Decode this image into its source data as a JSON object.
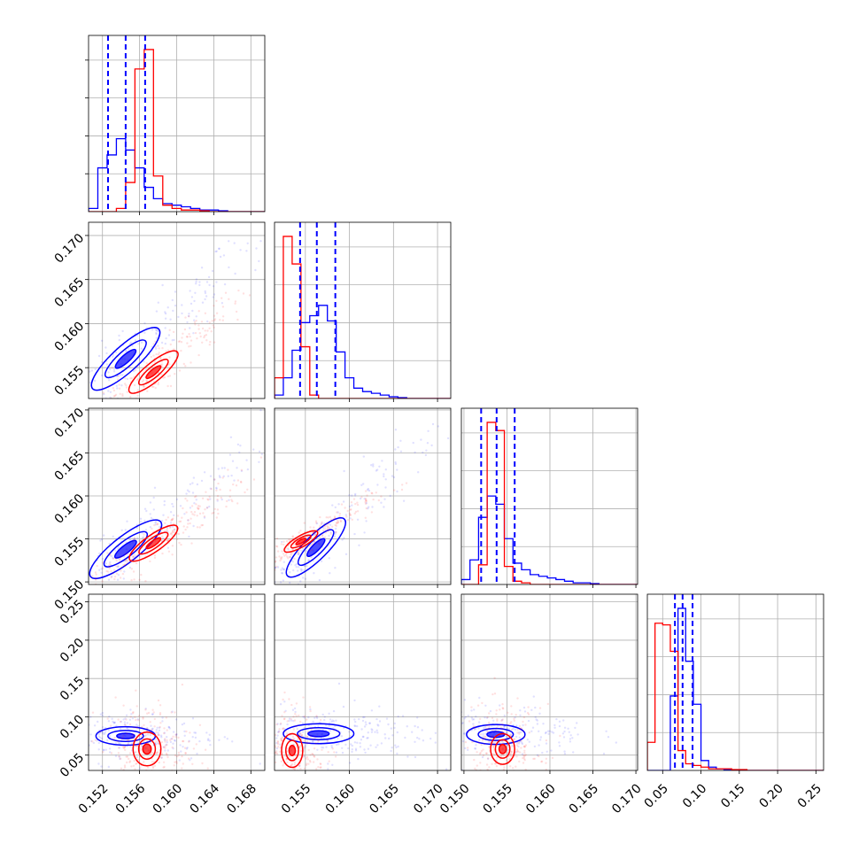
{
  "chart_data": {
    "type": "corner",
    "colors": {
      "a": "#0000ff",
      "b": "#ff0000"
    },
    "dims": [
      {
        "ticks": [
          "0.152",
          "0.156",
          "0.160",
          "0.164",
          "0.168"
        ],
        "tick_values": [
          0.152,
          0.156,
          0.16,
          0.164,
          0.168
        ],
        "range": [
          0.1505,
          0.1695
        ]
      },
      {
        "ticks": [
          "0.155",
          "0.160",
          "0.165",
          "0.170"
        ],
        "tick_values": [
          0.155,
          0.16,
          0.165,
          0.17
        ],
        "range": [
          0.1515,
          0.1715
        ]
      },
      {
        "ticks": [
          "0.150",
          "0.155",
          "0.160",
          "0.165",
          "0.170"
        ],
        "tick_values": [
          0.15,
          0.155,
          0.16,
          0.165,
          0.17
        ],
        "range": [
          0.1497,
          0.1702
        ]
      },
      {
        "ticks": [
          "0.05",
          "0.10",
          "0.15",
          "0.20",
          "0.25"
        ],
        "tick_values": [
          0.05,
          0.1,
          0.15,
          0.2,
          0.25
        ],
        "range": [
          0.03,
          0.26
        ]
      }
    ],
    "row_ticks": [
      null,
      {
        "ticks": [
          "0.155",
          "0.160",
          "0.165",
          "0.170"
        ],
        "tick_values": [
          0.155,
          0.16,
          0.165,
          0.17
        ],
        "range": [
          0.1515,
          0.1715
        ]
      },
      {
        "ticks": [
          "0.150",
          "0.155",
          "0.160",
          "0.165",
          "0.170"
        ],
        "tick_values": [
          0.15,
          0.155,
          0.16,
          0.165,
          0.17
        ],
        "range": [
          0.1497,
          0.1702
        ]
      },
      {
        "ticks": [
          "0.05",
          "0.10",
          "0.15",
          "0.20",
          "0.25"
        ],
        "tick_values": [
          0.05,
          0.1,
          0.15,
          0.2,
          0.25
        ],
        "range": [
          0.03,
          0.26
        ]
      }
    ],
    "hist": [
      {
        "edges": [
          0.1505,
          0.1515,
          0.1525,
          0.1535,
          0.1545,
          0.1555,
          0.1565,
          0.1575,
          0.1585,
          0.1595,
          0.1605,
          0.1615,
          0.1625,
          0.1635,
          0.1645,
          0.1655,
          0.1665,
          0.1675,
          0.1695
        ],
        "a": [
          0.02,
          0.27,
          0.35,
          0.45,
          0.38,
          0.27,
          0.15,
          0.08,
          0.05,
          0.04,
          0.03,
          0.02,
          0.01,
          0.01,
          0.005,
          0,
          0,
          0
        ],
        "b": [
          0,
          0,
          0,
          0.02,
          0.18,
          0.88,
          1.0,
          0.22,
          0.04,
          0.02,
          0.01,
          0.01,
          0.005,
          0,
          0,
          0,
          0,
          0
        ],
        "quantiles": [
          0.1526,
          0.1545,
          0.1566
        ]
      },
      {
        "edges": [
          0.1515,
          0.1525,
          0.1535,
          0.1545,
          0.1555,
          0.1565,
          0.1575,
          0.1585,
          0.1595,
          0.1605,
          0.1615,
          0.1625,
          0.1635,
          0.1645,
          0.1655,
          0.1665,
          0.1675,
          0.1695,
          0.1715
        ],
        "a": [
          0.02,
          0.12,
          0.28,
          0.44,
          0.48,
          0.54,
          0.45,
          0.27,
          0.12,
          0.06,
          0.04,
          0.03,
          0.02,
          0.01,
          0.005,
          0,
          0,
          0
        ],
        "b": [
          0.12,
          0.94,
          0.78,
          0.3,
          0.02,
          0,
          0,
          0,
          0,
          0,
          0,
          0,
          0,
          0,
          0,
          0,
          0,
          0
        ],
        "quantiles": [
          0.1544,
          0.1563,
          0.1584
        ]
      },
      {
        "edges": [
          0.1497,
          0.1507,
          0.1517,
          0.1527,
          0.1537,
          0.1547,
          0.1557,
          0.1567,
          0.1577,
          0.1587,
          0.1597,
          0.1607,
          0.1617,
          0.1627,
          0.1637,
          0.1647,
          0.1657,
          0.168,
          0.1702
        ],
        "a": [
          0.03,
          0.15,
          0.41,
          0.54,
          0.49,
          0.28,
          0.13,
          0.09,
          0.06,
          0.05,
          0.04,
          0.03,
          0.02,
          0.01,
          0.01,
          0.005,
          0,
          0
        ],
        "b": [
          0,
          0,
          0.12,
          0.99,
          0.94,
          0.11,
          0.02,
          0.01,
          0,
          0,
          0,
          0,
          0,
          0,
          0,
          0,
          0,
          0
        ],
        "quantiles": [
          0.152,
          0.1538,
          0.1559
        ]
      },
      {
        "edges": [
          0.03,
          0.04,
          0.05,
          0.06,
          0.07,
          0.08,
          0.09,
          0.1,
          0.11,
          0.12,
          0.13,
          0.14,
          0.15,
          0.16,
          0.17,
          0.18,
          0.2,
          0.22,
          0.26
        ],
        "a": [
          0,
          0,
          0,
          0.45,
          0.98,
          0.66,
          0.4,
          0.06,
          0.02,
          0.01,
          0.005,
          0,
          0,
          0,
          0,
          0,
          0,
          0
        ],
        "b": [
          0.17,
          0.89,
          0.88,
          0.72,
          0.12,
          0.04,
          0.03,
          0.02,
          0.01,
          0.01,
          0.01,
          0.005,
          0.005,
          0,
          0,
          0,
          0,
          0
        ],
        "quantiles": [
          0.066,
          0.076,
          0.089
        ]
      }
    ],
    "contours": [
      {
        "row": 1,
        "col": 0,
        "a": {
          "cx": 0.1545,
          "cy": 0.156,
          "major": 0.004,
          "minor": 0.0011,
          "angle": 42
        },
        "b": {
          "cx": 0.1575,
          "cy": 0.1545,
          "major": 0.0028,
          "minor": 0.001,
          "angle": 40
        }
      },
      {
        "row": 2,
        "col": 0,
        "a": {
          "cx": 0.1545,
          "cy": 0.1538,
          "major": 0.004,
          "minor": 0.001,
          "angle": 38
        },
        "b": {
          "cx": 0.1575,
          "cy": 0.1545,
          "major": 0.0026,
          "minor": 0.001,
          "angle": 35
        }
      },
      {
        "row": 2,
        "col": 1,
        "a": {
          "cx": 0.1562,
          "cy": 0.154,
          "major": 0.0038,
          "minor": 0.001,
          "angle": 45
        },
        "b": {
          "cx": 0.1545,
          "cy": 0.1547,
          "major": 0.0018,
          "minor": 0.0011,
          "angle": 30
        }
      },
      {
        "row": 3,
        "col": 0,
        "a": {
          "cx": 0.1545,
          "cy": 0.075,
          "major": 0.0032,
          "minor": 0.012,
          "angle": 8
        },
        "b": {
          "cx": 0.1568,
          "cy": 0.058,
          "major": 0.0015,
          "minor": 0.022,
          "angle": 0
        }
      },
      {
        "row": 3,
        "col": 1,
        "a": {
          "cx": 0.1565,
          "cy": 0.078,
          "major": 0.004,
          "minor": 0.013,
          "angle": 10
        },
        "b": {
          "cx": 0.1535,
          "cy": 0.056,
          "major": 0.0012,
          "minor": 0.022,
          "angle": 0
        }
      },
      {
        "row": 3,
        "col": 2,
        "a": {
          "cx": 0.1537,
          "cy": 0.077,
          "major": 0.0034,
          "minor": 0.013,
          "angle": 10
        },
        "b": {
          "cx": 0.1545,
          "cy": 0.058,
          "major": 0.0014,
          "minor": 0.02,
          "angle": 0
        }
      }
    ]
  }
}
